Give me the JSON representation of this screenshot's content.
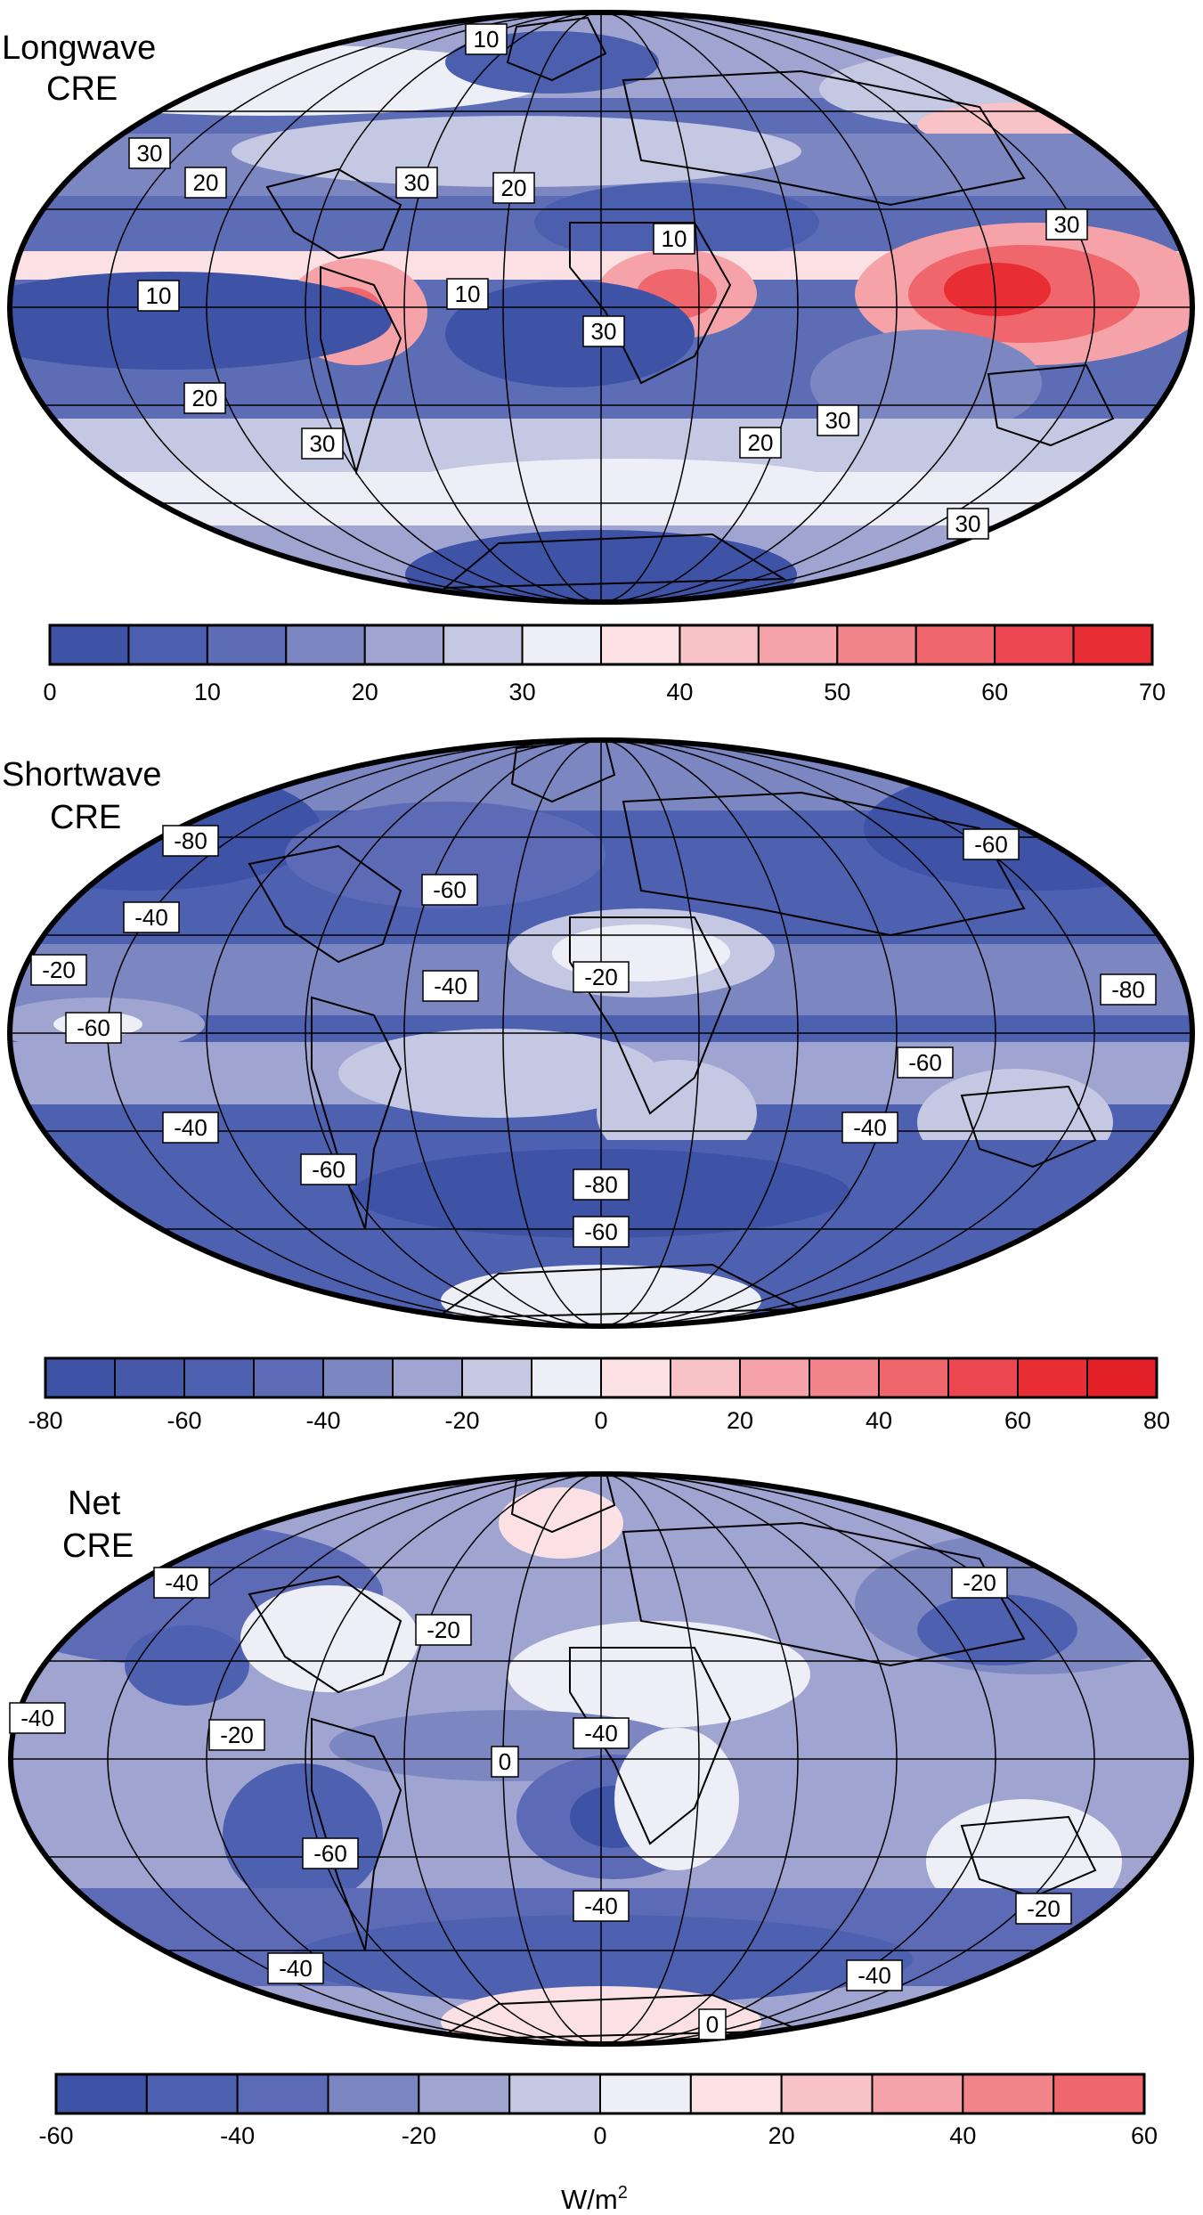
{
  "panels": [
    {
      "id": "longwave",
      "title_line1": "Longwave",
      "title_line2": "CRE",
      "colorbar": {
        "colors": [
          "#3e53a6",
          "#4c5fae",
          "#5c6db5",
          "#7c86c1",
          "#9fa4d1",
          "#c5c8e3",
          "#eeeef7",
          "#fbe1e4",
          "#f8c2c6",
          "#f5a3a8",
          "#f2858b",
          "#ef676d",
          "#ec4750",
          "#e82d35"
        ],
        "ticks": [
          "0",
          "10",
          "20",
          "30",
          "40",
          "50",
          "60",
          "70"
        ]
      },
      "contour_labels": [
        "10",
        "30",
        "20",
        "30",
        "20",
        "10",
        "30",
        "10",
        "10",
        "30",
        "20",
        "30",
        "20",
        "30",
        "30"
      ]
    },
    {
      "id": "shortwave",
      "title_line1": "Shortwave",
      "title_line2": "CRE",
      "colorbar": {
        "colors": [
          "#3e53a6",
          "#4658aa",
          "#4e60b0",
          "#5d6bb6",
          "#7c86c1",
          "#9fa4d1",
          "#c5c8e3",
          "#eeeef7",
          "#fbe1e4",
          "#f8c2c6",
          "#f5a3a8",
          "#f2858b",
          "#ef676d",
          "#ec4750",
          "#e82d35",
          "#e31f28"
        ],
        "ticks": [
          "-80",
          "-60",
          "-40",
          "-20",
          "0",
          "20",
          "40",
          "60",
          "80"
        ]
      },
      "contour_labels": [
        "-80",
        "-60",
        "-60",
        "-40",
        "-20",
        "-40",
        "-20",
        "-80",
        "-60",
        "-60",
        "-40",
        "-40",
        "-60",
        "-80",
        "-60"
      ]
    },
    {
      "id": "net",
      "title_line1": "Net",
      "title_line2": "CRE",
      "colorbar": {
        "colors": [
          "#3e53a6",
          "#4e60b0",
          "#5d6bb6",
          "#7c86c1",
          "#9fa4d1",
          "#c5c8e3",
          "#eeeef7",
          "#fbe1e4",
          "#f8c2c6",
          "#f5a3a8",
          "#f2858b",
          "#ef676d"
        ],
        "ticks": [
          "-60",
          "-40",
          "-20",
          "0",
          "20",
          "40",
          "60"
        ]
      },
      "contour_labels": [
        "-40",
        "-20",
        "-20",
        "-40",
        "-20",
        "0",
        "-40",
        "-60",
        "-40",
        "-20",
        "-40",
        "-40",
        "0"
      ]
    }
  ],
  "units": {
    "base": "W/m",
    "sup": "2"
  }
}
